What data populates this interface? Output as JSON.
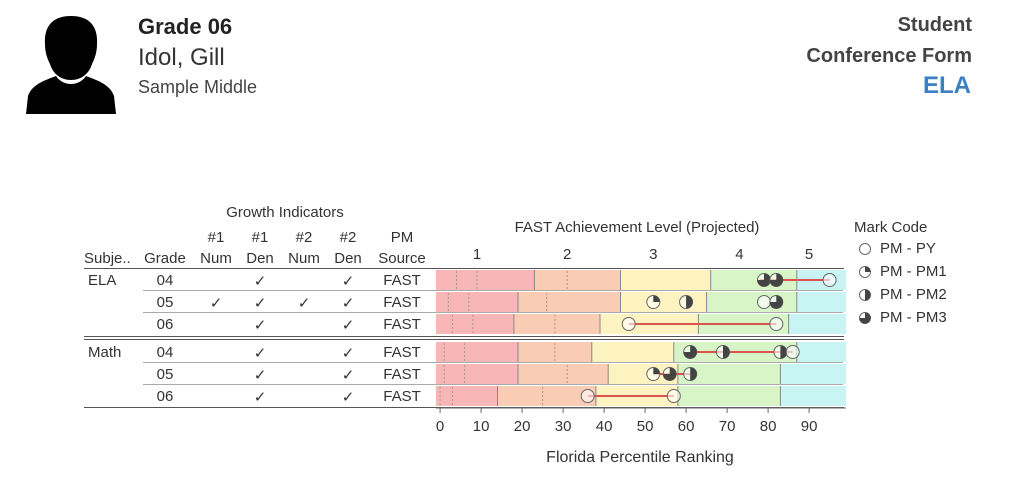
{
  "header": {
    "grade_title": "Grade 06",
    "student_name": "Idol, Gill",
    "school": "Sample Middle",
    "form_title_line1": "Student",
    "form_title_line2": "Conference Form",
    "subject": "ELA"
  },
  "table": {
    "group_header": "Growth Indicators",
    "columns": [
      {
        "line1": "",
        "line2": "Subje.."
      },
      {
        "line1": "",
        "line2": "Grade"
      },
      {
        "line1": "#1",
        "line2": "Num"
      },
      {
        "line1": "#1",
        "line2": "Den"
      },
      {
        "line1": "#2",
        "line2": "Num"
      },
      {
        "line1": "#2",
        "line2": "Den"
      },
      {
        "line1": "PM",
        "line2": "Source"
      }
    ],
    "rows": [
      {
        "subject": "ELA",
        "grade": "04",
        "n1": "",
        "d1": "✓",
        "n2": "",
        "d2": "✓",
        "source": "FAST"
      },
      {
        "subject": "",
        "grade": "05",
        "n1": "✓",
        "d1": "✓",
        "n2": "✓",
        "d2": "✓",
        "source": "FAST"
      },
      {
        "subject": "",
        "grade": "06",
        "n1": "",
        "d1": "✓",
        "n2": "",
        "d2": "✓",
        "source": "FAST"
      },
      {
        "subject": "Math",
        "grade": "04",
        "n1": "",
        "d1": "✓",
        "n2": "",
        "d2": "✓",
        "source": "FAST"
      },
      {
        "subject": "",
        "grade": "05",
        "n1": "",
        "d1": "✓",
        "n2": "",
        "d2": "✓",
        "source": "FAST"
      },
      {
        "subject": "",
        "grade": "06",
        "n1": "",
        "d1": "✓",
        "n2": "",
        "d2": "✓",
        "source": "FAST"
      }
    ]
  },
  "legend": {
    "title": "Mark Code",
    "items": [
      {
        "label": "PM - PY",
        "fill": "none"
      },
      {
        "label": "PM - PM1",
        "fill": "quarter"
      },
      {
        "label": "PM - PM2",
        "fill": "half"
      },
      {
        "label": "PM - PM3",
        "fill": "three-quarter"
      }
    ]
  },
  "chart_data": {
    "type": "range-dot",
    "title": "FAST Achievement Level (Projected)",
    "xlabel": "Florida Percentile Ranking",
    "xlim": [
      -1,
      99
    ],
    "xticks": [
      0,
      10,
      20,
      30,
      40,
      50,
      60,
      70,
      80,
      90
    ],
    "level_labels": [
      {
        "label": "1",
        "x": 9
      },
      {
        "label": "2",
        "x": 31
      },
      {
        "label": "3",
        "x": 52
      },
      {
        "label": "4",
        "x": 73
      },
      {
        "label": "5",
        "x": 90
      }
    ],
    "level_colors": [
      "#f9b6b6",
      "#fbccb4",
      "#fdf3c0",
      "#d8f5c8",
      "#c8f4f4"
    ],
    "rows": [
      {
        "label": "ELA 04",
        "levels": [
          -1,
          23,
          44,
          66,
          87
        ],
        "dashes": [
          4,
          9,
          31
        ],
        "line": [
          78,
          95
        ],
        "marks": [
          {
            "x": 95,
            "fill": "none"
          },
          {
            "x": 79,
            "fill": "three-quarter"
          },
          {
            "x": 82,
            "fill": "three-quarter"
          }
        ]
      },
      {
        "label": "ELA 05",
        "levels": [
          -1,
          19,
          44,
          65,
          87
        ],
        "dashes": [
          2,
          7,
          26
        ],
        "line": [],
        "marks": [
          {
            "x": 52,
            "fill": "quarter"
          },
          {
            "x": 60,
            "fill": "half"
          },
          {
            "x": 79,
            "fill": "none"
          },
          {
            "x": 82,
            "fill": "three-quarter"
          }
        ]
      },
      {
        "label": "ELA 06",
        "levels": [
          -1,
          18,
          39,
          63,
          85
        ],
        "dashes": [
          3,
          8,
          28
        ],
        "line": [
          46,
          82
        ],
        "marks": [
          {
            "x": 46,
            "fill": "none"
          },
          {
            "x": 82,
            "fill": "none"
          }
        ]
      },
      {
        "label": "Math 04",
        "levels": [
          -1,
          19,
          37,
          57,
          87
        ],
        "dashes": [
          1,
          6,
          28
        ],
        "line": [
          61,
          86
        ],
        "marks": [
          {
            "x": 61,
            "fill": "three-quarter"
          },
          {
            "x": 69,
            "fill": "half"
          },
          {
            "x": 83,
            "fill": "half"
          },
          {
            "x": 86,
            "fill": "none"
          }
        ]
      },
      {
        "label": "Math 05",
        "levels": [
          -1,
          19,
          41,
          58,
          83
        ],
        "dashes": [
          1,
          6,
          31
        ],
        "line": [
          52,
          62
        ],
        "marks": [
          {
            "x": 52,
            "fill": "quarter"
          },
          {
            "x": 56,
            "fill": "three-quarter"
          },
          {
            "x": 61,
            "fill": "half"
          }
        ]
      },
      {
        "label": "Math 06",
        "levels": [
          -1,
          14,
          38,
          58,
          83
        ],
        "dashes": [
          0,
          3,
          25
        ],
        "line": [
          36,
          57
        ],
        "marks": [
          {
            "x": 36,
            "fill": "none"
          },
          {
            "x": 57,
            "fill": "none"
          }
        ]
      }
    ]
  }
}
